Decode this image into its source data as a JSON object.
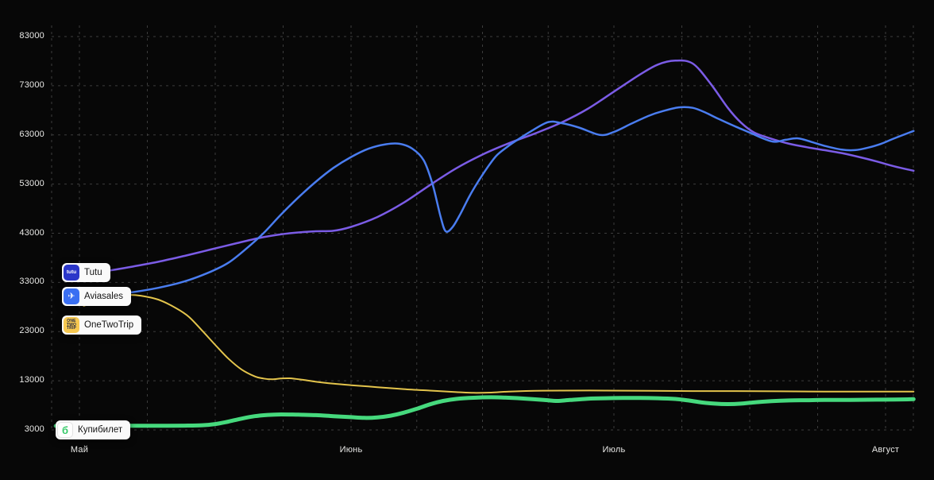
{
  "page": {
    "background": "#070707",
    "text_color": "#e8e8e6",
    "grid_color": "#3c3c3c"
  },
  "chart_data": {
    "type": "line",
    "title": "",
    "grid": "dashed",
    "legend_position": "floating-left",
    "x_unit": "days since May 1",
    "ylim": [
      3000,
      83000
    ],
    "yticks": [
      "83000",
      "73000",
      "63000",
      "53000",
      "43000",
      "33000",
      "23000",
      "13000",
      "3000"
    ],
    "xticks": [
      {
        "label": "Май",
        "day": 0
      },
      {
        "label": "Июнь",
        "day": 31
      },
      {
        "label": "Июль",
        "day": 61
      },
      {
        "label": "Август",
        "day": 92
      }
    ],
    "series": [
      {
        "key": "tutu",
        "name": "Tutu",
        "color": "#7b5ce6",
        "width": 2.5,
        "points": [
          [
            0,
            34500
          ],
          [
            3,
            35300
          ],
          [
            6,
            36200
          ],
          [
            9,
            37200
          ],
          [
            12,
            38400
          ],
          [
            15,
            39700
          ],
          [
            18,
            41000
          ],
          [
            21,
            42200
          ],
          [
            24,
            43000
          ],
          [
            27,
            43400
          ],
          [
            29,
            43500
          ],
          [
            31,
            44300
          ],
          [
            34,
            46300
          ],
          [
            37,
            49200
          ],
          [
            40,
            52800
          ],
          [
            43,
            56200
          ],
          [
            46,
            59000
          ],
          [
            49,
            61300
          ],
          [
            52,
            63300
          ],
          [
            55,
            65500
          ],
          [
            58,
            68300
          ],
          [
            61,
            71800
          ],
          [
            64,
            75300
          ],
          [
            66,
            77300
          ],
          [
            68,
            78100
          ],
          [
            70,
            77500
          ],
          [
            72,
            73500
          ],
          [
            74,
            68500
          ],
          [
            75.5,
            65500
          ],
          [
            77,
            63500
          ],
          [
            79,
            62200
          ],
          [
            81,
            61200
          ],
          [
            83,
            60500
          ],
          [
            85,
            59900
          ],
          [
            87,
            59300
          ],
          [
            89,
            58500
          ],
          [
            91,
            57600
          ],
          [
            93,
            56600
          ],
          [
            95.2,
            55700
          ]
        ]
      },
      {
        "key": "aviasales",
        "name": "Aviasales",
        "color": "#4a7df0",
        "width": 2.5,
        "points": [
          [
            0,
            30000
          ],
          [
            3,
            30400
          ],
          [
            6,
            31000
          ],
          [
            9,
            31900
          ],
          [
            12,
            33200
          ],
          [
            15,
            35200
          ],
          [
            17,
            37000
          ],
          [
            19,
            39800
          ],
          [
            21,
            43000
          ],
          [
            23,
            46800
          ],
          [
            25,
            50300
          ],
          [
            27,
            53500
          ],
          [
            29,
            56300
          ],
          [
            31,
            58500
          ],
          [
            33,
            60200
          ],
          [
            35,
            61100
          ],
          [
            36.5,
            61200
          ],
          [
            38,
            60200
          ],
          [
            39.3,
            57800
          ],
          [
            40.3,
            53000
          ],
          [
            41.2,
            46500
          ],
          [
            41.8,
            43400
          ],
          [
            42.6,
            44300
          ],
          [
            43.5,
            47000
          ],
          [
            44.5,
            50500
          ],
          [
            45.5,
            53500
          ],
          [
            46.5,
            56200
          ],
          [
            47.6,
            58800
          ],
          [
            49,
            60800
          ],
          [
            50,
            62000
          ],
          [
            51.5,
            63700
          ],
          [
            53.5,
            65600
          ],
          [
            55,
            65400
          ],
          [
            57,
            64500
          ],
          [
            59.4,
            63000
          ],
          [
            61,
            63600
          ],
          [
            63,
            65300
          ],
          [
            65,
            66900
          ],
          [
            66.5,
            67800
          ],
          [
            68.4,
            68600
          ],
          [
            70,
            68500
          ],
          [
            71.5,
            67500
          ],
          [
            73,
            66200
          ],
          [
            75,
            64600
          ],
          [
            76.6,
            63400
          ],
          [
            78,
            62300
          ],
          [
            79.3,
            61600
          ],
          [
            80.6,
            62000
          ],
          [
            82,
            62300
          ],
          [
            83.5,
            61600
          ],
          [
            85,
            60800
          ],
          [
            87,
            60000
          ],
          [
            88.5,
            59900
          ],
          [
            90,
            60400
          ],
          [
            91.5,
            61200
          ],
          [
            93,
            62300
          ],
          [
            95.2,
            63800
          ]
        ]
      },
      {
        "key": "onetwotrip",
        "name": "OneTwoTrip",
        "color": "#e3c44c",
        "width": 2,
        "points": [
          [
            0.5,
            28200
          ],
          [
            2,
            29300
          ],
          [
            4,
            30100
          ],
          [
            5.5,
            30450
          ],
          [
            7,
            30300
          ],
          [
            9,
            29500
          ],
          [
            11,
            27800
          ],
          [
            12.5,
            26000
          ],
          [
            14,
            23200
          ],
          [
            15.5,
            20300
          ],
          [
            17,
            17500
          ],
          [
            18.5,
            15300
          ],
          [
            20,
            13900
          ],
          [
            21,
            13450
          ],
          [
            22,
            13300
          ],
          [
            23,
            13450
          ],
          [
            24,
            13500
          ],
          [
            25.5,
            13200
          ],
          [
            27,
            12800
          ],
          [
            29,
            12400
          ],
          [
            31,
            12100
          ],
          [
            34,
            11700
          ],
          [
            37,
            11300
          ],
          [
            40,
            11000
          ],
          [
            43,
            10700
          ],
          [
            45,
            10550
          ],
          [
            47,
            10600
          ],
          [
            49,
            10800
          ],
          [
            52,
            10950
          ],
          [
            55,
            11000
          ],
          [
            60,
            11000
          ],
          [
            65,
            10950
          ],
          [
            70,
            10900
          ],
          [
            75,
            10900
          ],
          [
            80,
            10850
          ],
          [
            85,
            10800
          ],
          [
            90,
            10800
          ],
          [
            95.2,
            10800
          ]
        ]
      },
      {
        "key": "kupibilet",
        "name": "Купибилет",
        "color": "#46d97d",
        "width": 5,
        "points": [
          [
            -2.7,
            3800
          ],
          [
            0,
            3800
          ],
          [
            3,
            3830
          ],
          [
            6,
            3850
          ],
          [
            9,
            3850
          ],
          [
            12,
            3880
          ],
          [
            14,
            3950
          ],
          [
            15.5,
            4200
          ],
          [
            17,
            4700
          ],
          [
            18.5,
            5300
          ],
          [
            20,
            5800
          ],
          [
            21.5,
            6050
          ],
          [
            23,
            6150
          ],
          [
            25,
            6100
          ],
          [
            27,
            6000
          ],
          [
            29,
            5800
          ],
          [
            31,
            5600
          ],
          [
            32.5,
            5450
          ],
          [
            34,
            5550
          ],
          [
            35.5,
            5900
          ],
          [
            37,
            6500
          ],
          [
            38.5,
            7300
          ],
          [
            40,
            8200
          ],
          [
            41.5,
            8900
          ],
          [
            43,
            9300
          ],
          [
            45,
            9550
          ],
          [
            47,
            9650
          ],
          [
            49,
            9550
          ],
          [
            51,
            9350
          ],
          [
            53,
            9100
          ],
          [
            54.5,
            8900
          ],
          [
            56,
            9100
          ],
          [
            58,
            9350
          ],
          [
            60,
            9450
          ],
          [
            62,
            9500
          ],
          [
            64,
            9500
          ],
          [
            66,
            9450
          ],
          [
            68,
            9300
          ],
          [
            69.5,
            9000
          ],
          [
            71,
            8600
          ],
          [
            72.5,
            8350
          ],
          [
            74,
            8250
          ],
          [
            75.5,
            8350
          ],
          [
            77,
            8600
          ],
          [
            79,
            8850
          ],
          [
            81,
            9000
          ],
          [
            83,
            9050
          ],
          [
            85,
            9100
          ],
          [
            87,
            9100
          ],
          [
            89,
            9120
          ],
          [
            91,
            9150
          ],
          [
            93,
            9180
          ],
          [
            95.2,
            9250
          ]
        ]
      }
    ]
  },
  "legend": {
    "items": [
      {
        "label": "Tutu",
        "icon": "tutu-logo",
        "icon_bg": "#2b36c9",
        "icon_text": "tutu",
        "icon_text_color": "#ffffff"
      },
      {
        "label": "Aviasales",
        "icon": "aviasales-logo",
        "icon_bg": "#3a6ff2",
        "icon_text": "✈",
        "icon_text_color": "#ffffff"
      },
      {
        "label": "OneTwoTrip",
        "icon": "onetwotrip-logo",
        "icon_bg": "#f6c850",
        "icon_lines": [
          "ONE",
          "TWO",
          "TRIP"
        ],
        "icon_text_color": "#1c2340"
      },
      {
        "label": "Купибилет",
        "icon": "kupibilet-logo",
        "icon_bg": "#ffffff",
        "icon_text": "б",
        "icon_text_color": "#35c968"
      }
    ]
  }
}
